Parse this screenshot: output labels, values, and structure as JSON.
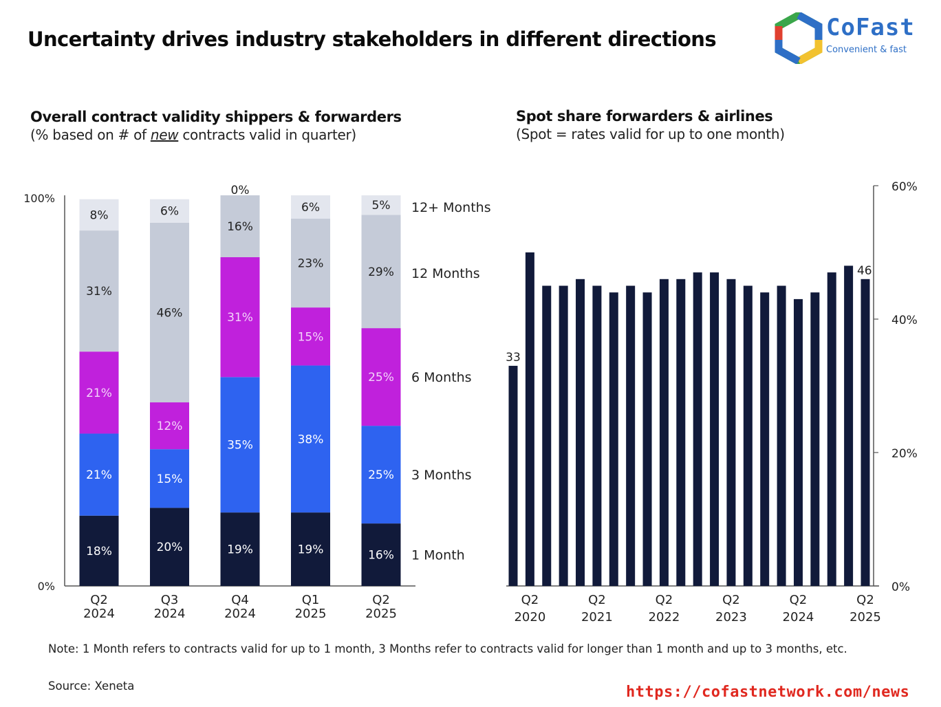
{
  "header": {
    "title": "Uncertainty drives industry stakeholders in different directions"
  },
  "logo": {
    "name": "CoFast",
    "tagline": "Convenient & fast",
    "colors": [
      "#2e6fc6",
      "#3aa64a",
      "#f2c230",
      "#e0402f"
    ]
  },
  "footer": {
    "note": "Note: 1 Month refers to contracts valid for up to 1 month, 3 Months refer to contracts valid for longer than 1 month and up to 3 months, etc.",
    "source": "Source: Xeneta",
    "url": "https://cofastnetwork.com/news"
  },
  "chart_data": [
    {
      "type": "bar",
      "stacked": true,
      "title": "Overall contract validity shippers & forwarders",
      "subtitle_prefix": "(% based on # of ",
      "subtitle_emph": "new",
      "subtitle_suffix": " contracts valid in quarter)",
      "categories": [
        "Q2\n2024",
        "Q3\n2024",
        "Q4\n2024",
        "Q1\n2025",
        "Q2\n2025"
      ],
      "category_lines": [
        [
          "Q2",
          "2024"
        ],
        [
          "Q3",
          "2024"
        ],
        [
          "Q4",
          "2024"
        ],
        [
          "Q1",
          "2025"
        ],
        [
          "Q2",
          "2025"
        ]
      ],
      "series": [
        {
          "name": "1 Month",
          "color": "#111a3a",
          "label_color": "#ffffff",
          "values": [
            18,
            20,
            19,
            19,
            16
          ]
        },
        {
          "name": "3 Months",
          "color": "#2e63f0",
          "label_color": "#ffffff",
          "values": [
            21,
            15,
            35,
            38,
            25
          ]
        },
        {
          "name": "6 Months",
          "color": "#c021dc",
          "label_color": "#f3d4fa",
          "values": [
            21,
            12,
            31,
            15,
            25
          ]
        },
        {
          "name": "12 Months",
          "color": "#c5cbd8",
          "label_color": "#222222",
          "values": [
            31,
            46,
            16,
            23,
            29
          ]
        },
        {
          "name": "12+ Months",
          "color": "#e3e6ee",
          "label_color": "#222222",
          "values": [
            8,
            6,
            0,
            6,
            5
          ]
        }
      ],
      "ylim": [
        0,
        100
      ],
      "ytick_labels": [
        "0%",
        "100%"
      ],
      "legend": "right (inline labels)",
      "xlabel": "",
      "ylabel": ""
    },
    {
      "type": "bar",
      "title": "Spot share forwarders & airlines",
      "subtitle": "(Spot = rates valid for up to one month)",
      "x": [
        "Q1 2020",
        "Q2 2020",
        "Q3 2020",
        "Q4 2020",
        "Q1 2021",
        "Q2 2021",
        "Q3 2021",
        "Q4 2021",
        "Q1 2022",
        "Q2 2022",
        "Q3 2022",
        "Q4 2022",
        "Q1 2023",
        "Q2 2023",
        "Q3 2023",
        "Q4 2023",
        "Q1 2024",
        "Q2 2024",
        "Q3 2024",
        "Q4 2024",
        "Q1 2025",
        "Q2 2025"
      ],
      "values": [
        33,
        50,
        45,
        45,
        46,
        45,
        44,
        45,
        44,
        46,
        46,
        47,
        47,
        46,
        45,
        44,
        45,
        43,
        44,
        47,
        48,
        46
      ],
      "color": "#111a3a",
      "data_labels": [
        {
          "index": 0,
          "text": "33"
        },
        {
          "index": 21,
          "text": "46"
        }
      ],
      "xtick_labels": [
        {
          "index": 1,
          "lines": [
            "Q2",
            "2020"
          ]
        },
        {
          "index": 5,
          "lines": [
            "Q2",
            "2021"
          ]
        },
        {
          "index": 9,
          "lines": [
            "Q2",
            "2022"
          ]
        },
        {
          "index": 13,
          "lines": [
            "Q2",
            "2023"
          ]
        },
        {
          "index": 17,
          "lines": [
            "Q2",
            "2024"
          ]
        },
        {
          "index": 21,
          "lines": [
            "Q2",
            "2025"
          ]
        }
      ],
      "ylim": [
        0,
        60
      ],
      "yticks": [
        0,
        20,
        40,
        60
      ],
      "ytick_labels": [
        "0%",
        "20%",
        "40%",
        "60%"
      ],
      "yaxis_side": "right",
      "xlabel": "",
      "ylabel": ""
    }
  ]
}
